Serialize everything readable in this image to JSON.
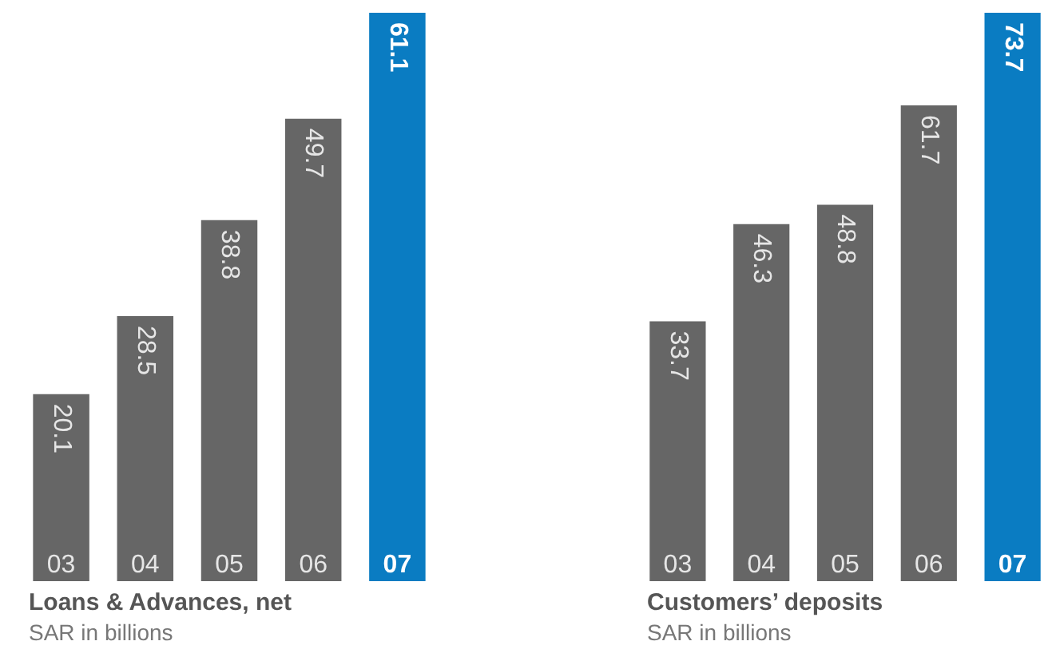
{
  "chart_data": [
    {
      "type": "bar",
      "title": "Loans & Advances, net",
      "subtitle": "SAR in billions",
      "categories": [
        "03",
        "04",
        "05",
        "06",
        "07"
      ],
      "values": [
        20.1,
        28.5,
        38.8,
        49.7,
        61.1
      ],
      "colors": [
        "#666666",
        "#666666",
        "#666666",
        "#666666",
        "#0a7cc2"
      ],
      "data_labels": true,
      "legend": false,
      "tick_labels": false
    },
    {
      "type": "bar",
      "title": "Customers’ deposits",
      "subtitle": "SAR in billions",
      "categories": [
        "03",
        "04",
        "05",
        "06",
        "07"
      ],
      "values": [
        33.7,
        46.3,
        48.8,
        61.7,
        73.7
      ],
      "colors": [
        "#666666",
        "#666666",
        "#666666",
        "#666666",
        "#0a7cc2"
      ],
      "data_labels": true,
      "legend": false,
      "tick_labels": false
    }
  ]
}
